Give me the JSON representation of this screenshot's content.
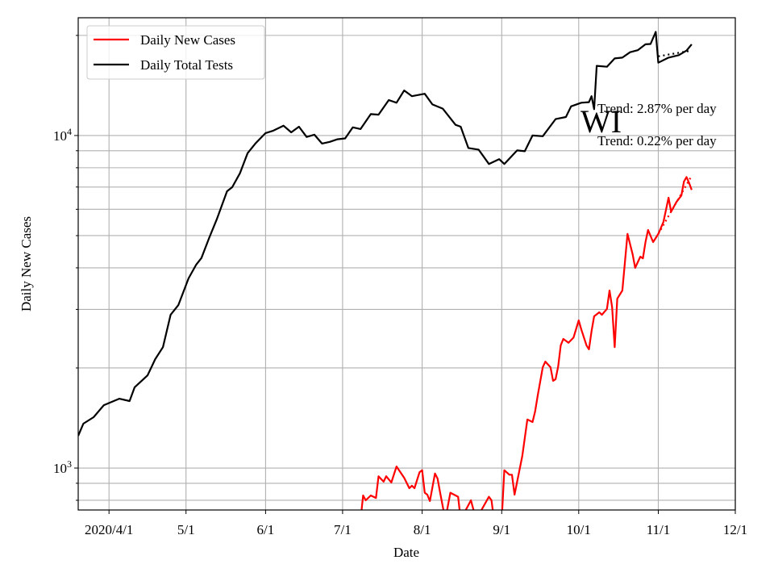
{
  "chart_data": {
    "type": "line",
    "title": "",
    "annotation_label": "WI",
    "xlabel": "Date",
    "ylabel": "Daily New Cases",
    "yscale": "log",
    "ylim": [
      748,
      22600
    ],
    "xlim": [
      "2020-03-20",
      "2020-12-01"
    ],
    "grid": true,
    "legend_placement": "top-left",
    "x_ticks": [
      {
        "date": "2020-04-01",
        "label": "2020/4/1"
      },
      {
        "date": "2020-05-01",
        "label": "5/1"
      },
      {
        "date": "2020-06-01",
        "label": "6/1"
      },
      {
        "date": "2020-07-01",
        "label": "7/1"
      },
      {
        "date": "2020-08-01",
        "label": "8/1"
      },
      {
        "date": "2020-09-01",
        "label": "9/1"
      },
      {
        "date": "2020-10-01",
        "label": "10/1"
      },
      {
        "date": "2020-11-01",
        "label": "11/1"
      },
      {
        "date": "2020-12-01",
        "label": "12/1"
      }
    ],
    "y_ticks": [
      {
        "value": 1000,
        "base": "10",
        "exp": "3"
      },
      {
        "value": 10000,
        "base": "10",
        "exp": "4"
      }
    ],
    "trend_labels": [
      "Trend: 2.87% per day",
      "Trend: 0.22% per day"
    ],
    "series": [
      {
        "name": "Daily New Cases",
        "color": "#ff0000",
        "x": [
          "2020-07-08",
          "2020-07-09",
          "2020-07-10",
          "2020-07-12",
          "2020-07-14",
          "2020-07-15",
          "2020-07-17",
          "2020-07-18",
          "2020-07-20",
          "2020-07-22",
          "2020-07-25",
          "2020-07-27",
          "2020-07-28",
          "2020-07-29",
          "2020-07-31",
          "2020-08-01",
          "2020-08-02",
          "2020-08-03",
          "2020-08-04",
          "2020-08-06",
          "2020-08-07",
          "2020-08-08",
          "2020-08-10",
          "2020-08-12",
          "2020-08-15",
          "2020-08-16",
          "2020-08-20",
          "2020-08-22",
          "2020-08-27",
          "2020-08-28",
          "2020-08-29",
          "2020-09-01",
          "2020-09-02",
          "2020-09-04",
          "2020-09-05",
          "2020-09-06",
          "2020-09-09",
          "2020-09-11",
          "2020-09-13",
          "2020-09-14",
          "2020-09-15",
          "2020-09-17",
          "2020-09-18",
          "2020-09-20",
          "2020-09-21",
          "2020-09-22",
          "2020-09-23",
          "2020-09-24",
          "2020-09-25",
          "2020-09-27",
          "2020-09-29",
          "2020-10-01",
          "2020-10-02",
          "2020-10-04",
          "2020-10-05",
          "2020-10-06",
          "2020-10-07",
          "2020-10-09",
          "2020-10-10",
          "2020-10-12",
          "2020-10-13",
          "2020-10-14",
          "2020-10-15",
          "2020-10-16",
          "2020-10-18",
          "2020-10-20",
          "2020-10-22",
          "2020-10-23",
          "2020-10-25",
          "2020-10-26",
          "2020-10-27",
          "2020-10-28",
          "2020-10-30",
          "2020-11-01",
          "2020-11-03",
          "2020-11-05",
          "2020-11-06",
          "2020-11-08",
          "2020-11-10",
          "2020-11-11",
          "2020-11-12",
          "2020-11-13",
          "2020-11-14"
        ],
        "values": [
          700,
          827,
          800,
          827,
          813,
          945,
          910,
          945,
          905,
          1011,
          935,
          870,
          885,
          870,
          972,
          985,
          843,
          832,
          796,
          963,
          930,
          843,
          700,
          843,
          820,
          700,
          800,
          700,
          820,
          800,
          700,
          700,
          985,
          955,
          955,
          832,
          1087,
          1400,
          1375,
          1480,
          1650,
          2010,
          2090,
          2010,
          1830,
          1850,
          2020,
          2340,
          2445,
          2380,
          2470,
          2780,
          2610,
          2340,
          2275,
          2580,
          2860,
          2940,
          2890,
          3010,
          3420,
          3050,
          2310,
          3230,
          3420,
          5060,
          4390,
          4000,
          4320,
          4270,
          4780,
          5200,
          4780,
          5060,
          5500,
          6500,
          5900,
          6300,
          6600,
          7270,
          7500,
          7200,
          6860
        ]
      },
      {
        "name": "Daily Total Tests",
        "color": "#000000",
        "x": [
          "2020-03-20",
          "2020-03-22",
          "2020-03-26",
          "2020-03-30",
          "2020-04-05",
          "2020-04-09",
          "2020-04-11",
          "2020-04-16",
          "2020-04-19",
          "2020-04-22",
          "2020-04-25",
          "2020-04-28",
          "2020-05-02",
          "2020-05-05",
          "2020-05-07",
          "2020-05-10",
          "2020-05-13",
          "2020-05-17",
          "2020-05-19",
          "2020-05-22",
          "2020-05-25",
          "2020-05-28",
          "2020-06-01",
          "2020-06-04",
          "2020-06-08",
          "2020-06-11",
          "2020-06-14",
          "2020-06-17",
          "2020-06-20",
          "2020-06-23",
          "2020-06-26",
          "2020-06-29",
          "2020-07-02",
          "2020-07-05",
          "2020-07-08",
          "2020-07-12",
          "2020-07-15",
          "2020-07-19",
          "2020-07-22",
          "2020-07-25",
          "2020-07-28",
          "2020-08-02",
          "2020-08-05",
          "2020-08-09",
          "2020-08-14",
          "2020-08-16",
          "2020-08-19",
          "2020-08-23",
          "2020-08-27",
          "2020-08-31",
          "2020-09-02",
          "2020-09-07",
          "2020-09-10",
          "2020-09-13",
          "2020-09-17",
          "2020-09-22",
          "2020-09-26",
          "2020-09-28",
          "2020-10-02",
          "2020-10-05",
          "2020-10-06",
          "2020-10-07",
          "2020-10-08",
          "2020-10-12",
          "2020-10-15",
          "2020-10-18",
          "2020-10-21",
          "2020-10-24",
          "2020-10-27",
          "2020-10-29",
          "2020-10-31",
          "2020-11-01",
          "2020-11-05",
          "2020-11-09",
          "2020-11-12",
          "2020-11-14"
        ],
        "values": [
          1250,
          1360,
          1422,
          1546,
          1616,
          1590,
          1750,
          1900,
          2125,
          2310,
          2890,
          3090,
          3720,
          4090,
          4280,
          4920,
          5600,
          6800,
          6990,
          7700,
          8850,
          9460,
          10170,
          10340,
          10700,
          10220,
          10630,
          9900,
          10060,
          9460,
          9570,
          9740,
          9800,
          10580,
          10460,
          11600,
          11550,
          12780,
          12550,
          13660,
          13130,
          13350,
          12400,
          12050,
          10770,
          10630,
          9170,
          9070,
          8210,
          8490,
          8210,
          9020,
          8970,
          10000,
          9950,
          11200,
          11370,
          12240,
          12550,
          12600,
          13130,
          12000,
          16200,
          16100,
          17050,
          17150,
          17800,
          18050,
          18800,
          18850,
          20500,
          16560,
          17150,
          17450,
          18000,
          18800
        ]
      }
    ],
    "trends": [
      {
        "color": "#ff0000",
        "x": [
          "2020-11-01",
          "2020-11-14"
        ],
        "values": [
          5060,
          7570
        ]
      },
      {
        "color": "#000000",
        "x": [
          "2020-11-01",
          "2020-11-14"
        ],
        "values": [
          17300,
          18000
        ]
      }
    ]
  }
}
